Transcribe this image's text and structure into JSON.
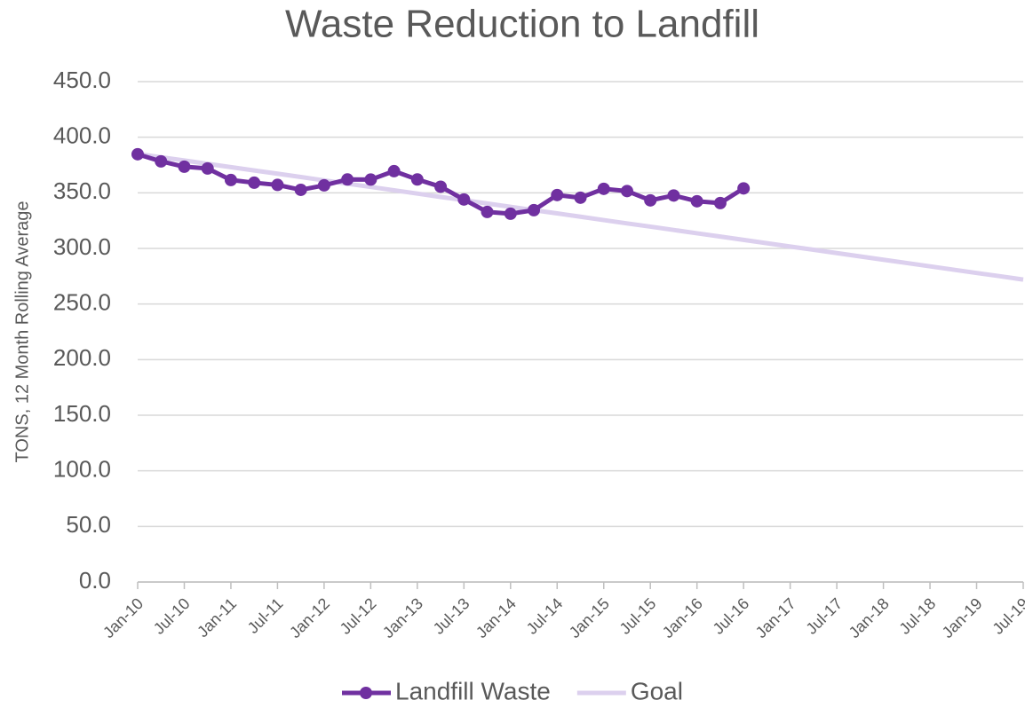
{
  "chart_data": {
    "type": "line",
    "title": "Waste Reduction to Landfill",
    "y_label": "TONS, 12 Month Rolling Average",
    "categories": [
      "Jan-10",
      null,
      "Jul-10",
      null,
      "Jan-11",
      null,
      "Jul-11",
      null,
      "Jan-12",
      null,
      "Jul-12",
      null,
      "Jan-13",
      null,
      "Jul-13",
      null,
      "Jan-14",
      null,
      "Jul-14",
      null,
      "Jan-15",
      null,
      "Jul-15",
      null,
      "Jan-16",
      null,
      "Jul-16",
      null,
      "Jan-17",
      null,
      "Jul-17",
      null,
      "Jan-18",
      null,
      "Jul-18",
      null,
      "Jan-19",
      null,
      "Jul-19"
    ],
    "series": [
      {
        "name": "Landfill Waste",
        "color": "#7030a0",
        "markers": true,
        "values": [
          384.7,
          378.3,
          373.5,
          371.9,
          361.5,
          359.1,
          357.1,
          352.7,
          356.7,
          362.0,
          361.9,
          369.5,
          362.0,
          355.5,
          344.0,
          332.8,
          331.2,
          334.4,
          348.0,
          345.6,
          353.6,
          351.6,
          343.2,
          347.6,
          342.4,
          340.8,
          354.0,
          null,
          null,
          null,
          null,
          null,
          null,
          null,
          null,
          null,
          null,
          null,
          null
        ]
      },
      {
        "name": "Goal",
        "color": "#dcd0ee",
        "markers": false,
        "values": [
          385.0,
          382.0,
          379.1,
          376.1,
          373.1,
          370.1,
          367.2,
          364.2,
          361.2,
          358.2,
          355.3,
          352.3,
          349.3,
          346.3,
          343.4,
          340.4,
          337.4,
          334.4,
          331.5,
          328.5,
          325.5,
          322.5,
          319.6,
          316.6,
          313.6,
          310.7,
          307.7,
          304.7,
          301.7,
          298.8,
          295.8,
          292.8,
          289.8,
          286.9,
          283.9,
          280.9,
          277.9,
          275.0,
          272.0
        ]
      }
    ],
    "ylim": [
      0,
      450
    ],
    "yticks": [
      {
        "value": 0,
        "label": "0.0"
      },
      {
        "value": 50,
        "label": "50.0"
      },
      {
        "value": 100,
        "label": "100.0"
      },
      {
        "value": 150,
        "label": "150.0"
      },
      {
        "value": 200,
        "label": "200.0"
      },
      {
        "value": 250,
        "label": "250.0"
      },
      {
        "value": 300,
        "label": "300.0"
      },
      {
        "value": 350,
        "label": "350.0"
      },
      {
        "value": 400,
        "label": "400.0"
      },
      {
        "value": 450,
        "label": "450.0"
      }
    ],
    "grid": true,
    "legend": "bottom"
  }
}
